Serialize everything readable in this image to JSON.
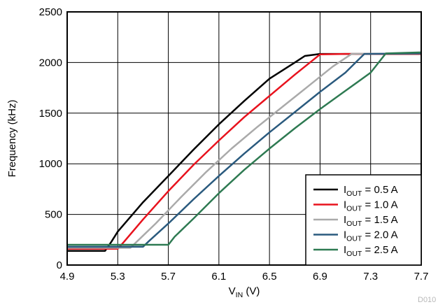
{
  "chart_data": {
    "type": "line",
    "xlabel": {
      "main": "V",
      "sub": "IN",
      "unit": " (V)"
    },
    "ylabel": "Frequency (kHz)",
    "xlim": [
      4.9,
      7.7
    ],
    "ylim": [
      0,
      2500
    ],
    "x_ticks": [
      "4.9",
      "5.3",
      "5.7",
      "6.1",
      "6.5",
      "6.9",
      "7.3",
      "7.7"
    ],
    "y_ticks": [
      "0",
      "500",
      "1000",
      "1500",
      "2000",
      "2500"
    ],
    "grid": true,
    "legend_position": "bottom-right",
    "figure_id": "D010",
    "series": [
      {
        "name": {
          "main": "I",
          "sub": "OUT",
          "rest": " = 0.5 A"
        },
        "color": "#000000",
        "x": [
          4.9,
          5.2,
          5.25,
          5.3,
          5.5,
          5.7,
          5.9,
          6.1,
          6.3,
          6.5,
          6.7,
          6.78,
          6.9,
          7.7
        ],
        "y": [
          140,
          140,
          230,
          330,
          620,
          880,
          1140,
          1390,
          1620,
          1840,
          2000,
          2065,
          2085,
          2085
        ]
      },
      {
        "name": {
          "main": "I",
          "sub": "OUT",
          "rest": " = 1.0 A"
        },
        "color": "#e8121d",
        "x": [
          4.9,
          5.3,
          5.35,
          5.5,
          5.7,
          5.9,
          6.1,
          6.3,
          6.5,
          6.7,
          6.9,
          7.1,
          7.7
        ],
        "y": [
          160,
          160,
          230,
          450,
          730,
          990,
          1230,
          1460,
          1670,
          1880,
          2080,
          2085,
          2085
        ]
      },
      {
        "name": {
          "main": "I",
          "sub": "OUT",
          "rest": " = 1.5 A"
        },
        "color": "#aaaaaa",
        "x": [
          4.9,
          5.4,
          5.45,
          5.6,
          5.8,
          6.0,
          6.2,
          6.4,
          6.6,
          6.8,
          7.0,
          7.15,
          7.7
        ],
        "y": [
          170,
          170,
          230,
          410,
          670,
          920,
          1150,
          1360,
          1560,
          1760,
          1960,
          2085,
          2090
        ]
      },
      {
        "name": {
          "main": "I",
          "sub": "OUT",
          "rest": " = 2.0 A"
        },
        "color": "#2a5a7e",
        "x": [
          4.9,
          5.5,
          5.55,
          5.7,
          5.9,
          6.1,
          6.3,
          6.5,
          6.7,
          6.9,
          7.1,
          7.25,
          7.7
        ],
        "y": [
          180,
          180,
          240,
          410,
          650,
          880,
          1100,
          1310,
          1510,
          1710,
          1900,
          2085,
          2090
        ]
      },
      {
        "name": {
          "main": "I",
          "sub": "OUT",
          "rest": " = 2.5 A"
        },
        "color": "#2e7a52",
        "x": [
          4.9,
          5.7,
          5.75,
          5.9,
          6.1,
          6.3,
          6.5,
          6.7,
          6.9,
          7.1,
          7.3,
          7.42,
          7.7
        ],
        "y": [
          200,
          200,
          280,
          460,
          710,
          940,
          1150,
          1350,
          1540,
          1720,
          1900,
          2090,
          2100
        ]
      }
    ]
  }
}
